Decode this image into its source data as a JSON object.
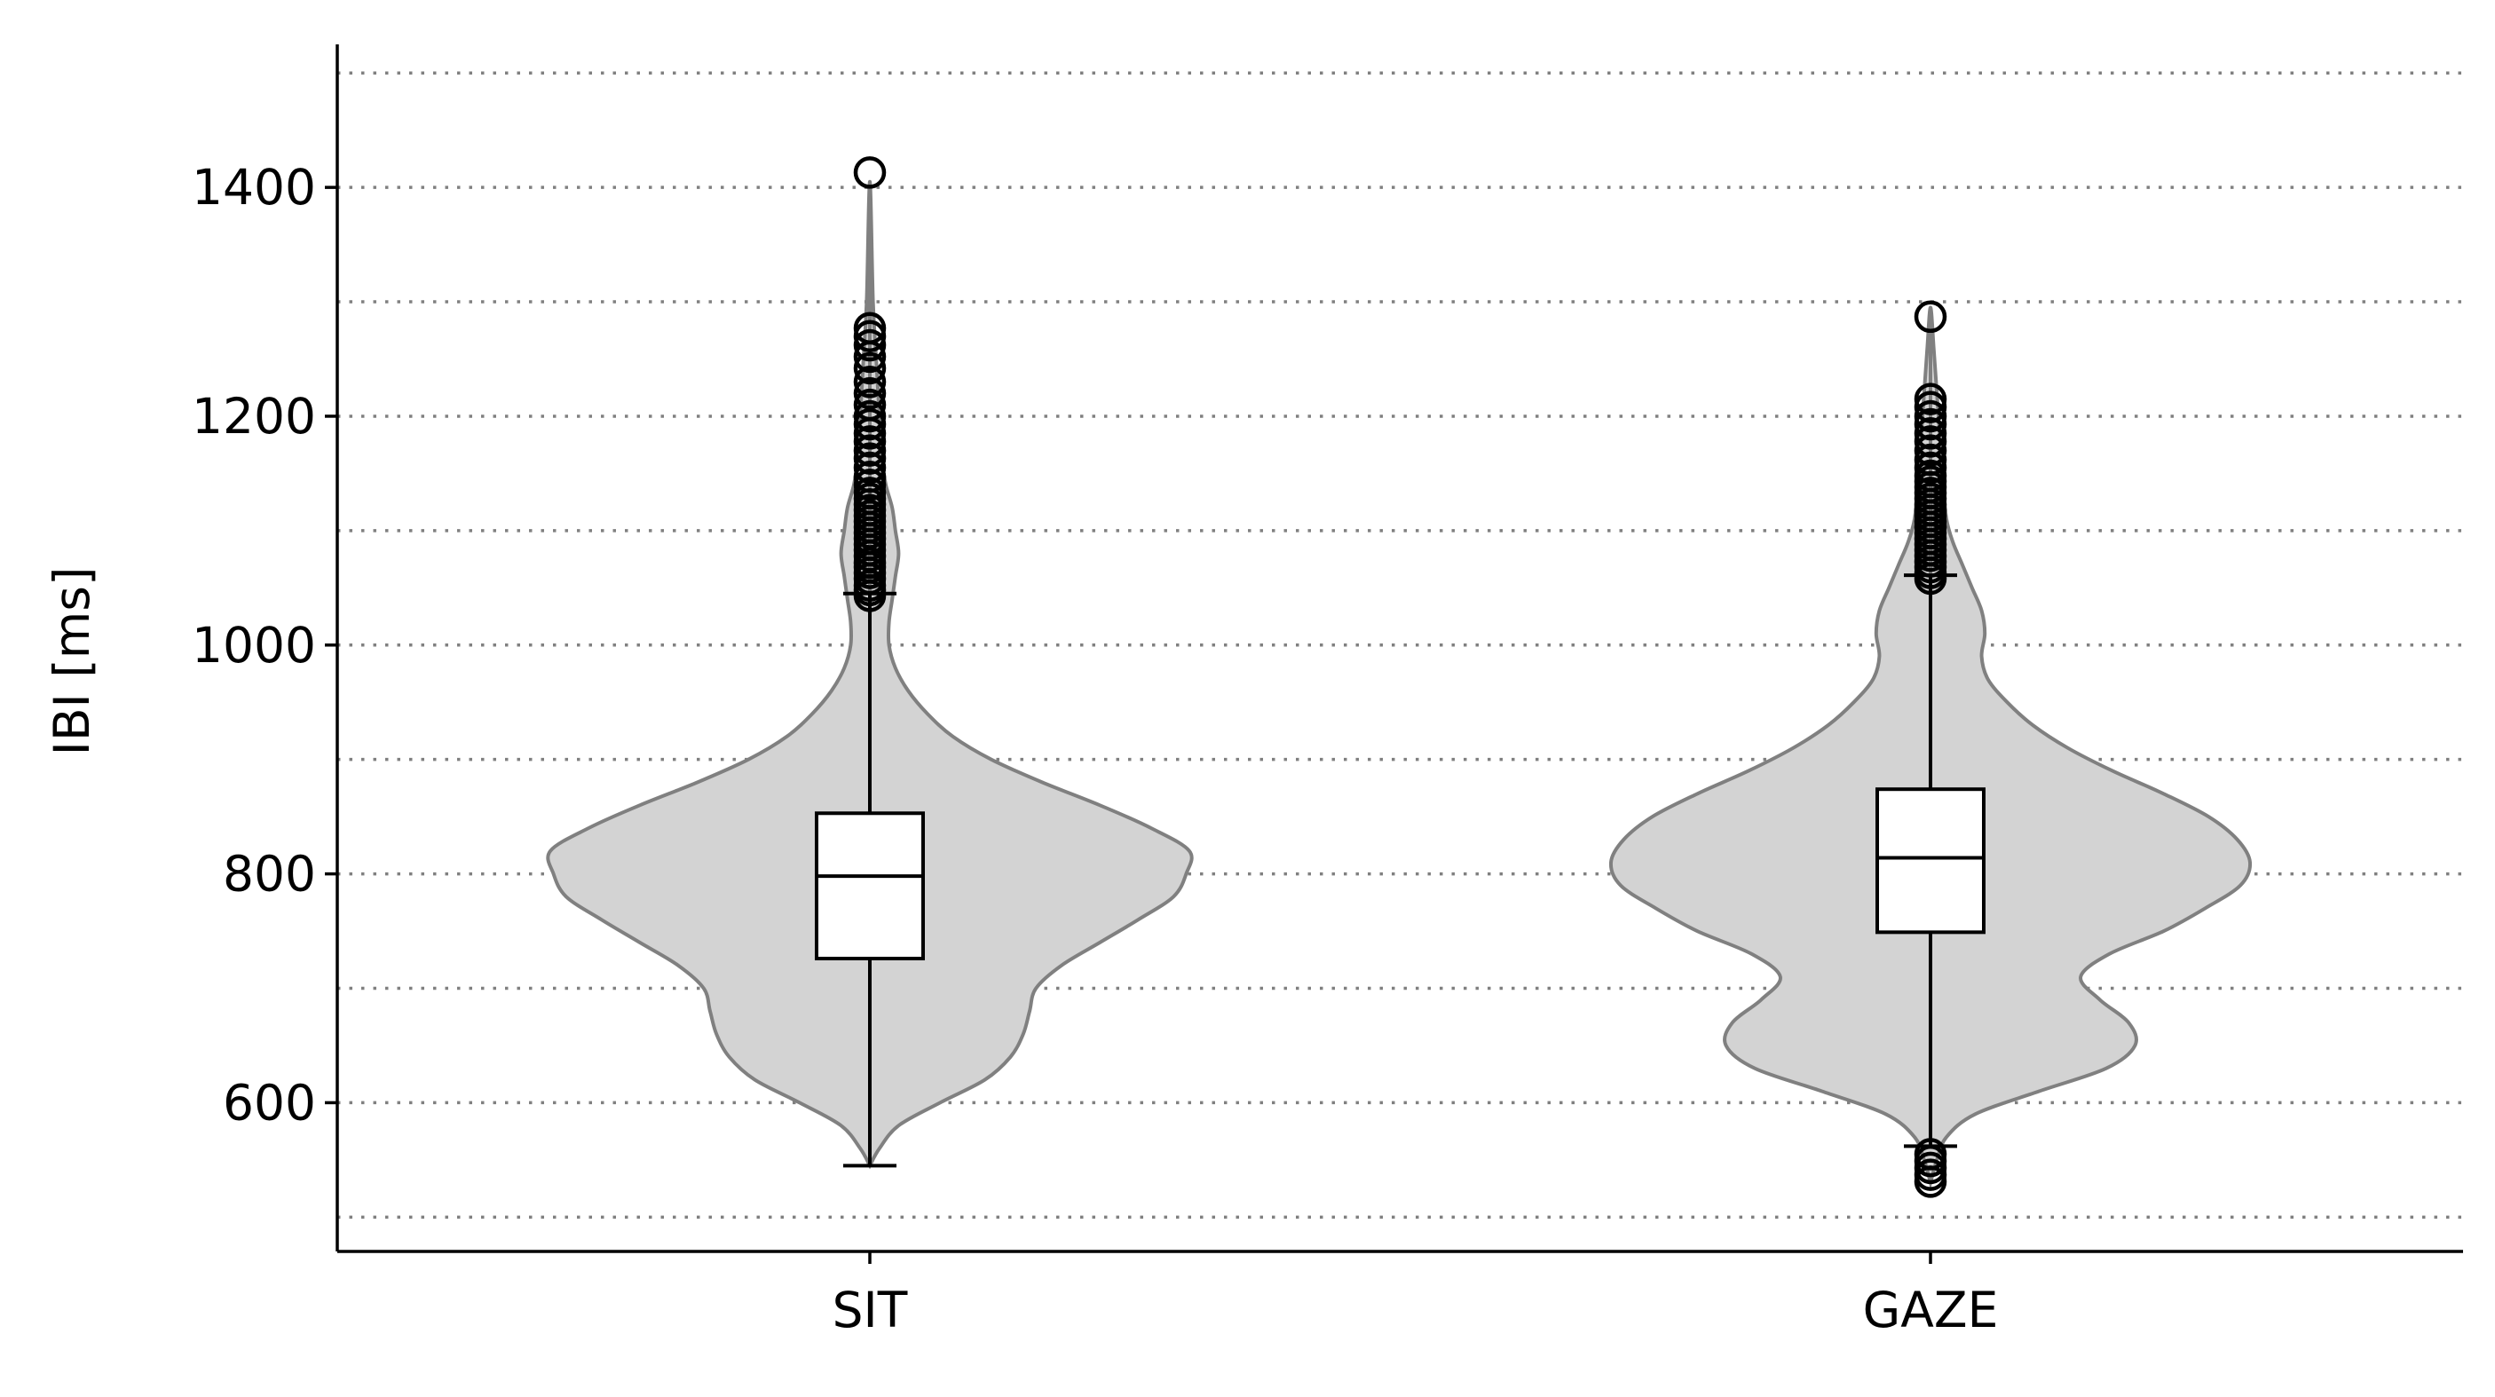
{
  "chart_data": {
    "type": "violin+box",
    "title": "",
    "xlabel": "",
    "ylabel": "IBI [ms]",
    "ylim": [
      470,
      1525
    ],
    "yticks": [
      600,
      800,
      1000,
      1200,
      1400
    ],
    "ygrid_lines": [
      500,
      600,
      700,
      800,
      900,
      1000,
      1100,
      1200,
      1300,
      1400,
      1500
    ],
    "grid": "horizontal dotted",
    "categories": [
      "SIT",
      "GAZE"
    ],
    "colors": {
      "violin_fill": "#d3d3d3",
      "violin_edge": "#808080",
      "box_fill": "#ffffff",
      "line": "#000000",
      "grid": "#808080"
    },
    "series": [
      {
        "category": "SIT",
        "box": {
          "whisker_low": 545,
          "q1": 726,
          "median": 798,
          "q3": 853,
          "whisker_high": 1045
        },
        "outliers": [
          1043,
          1048,
          1052,
          1058,
          1063,
          1068,
          1072,
          1078,
          1083,
          1088,
          1093,
          1098,
          1103,
          1108,
          1113,
          1118,
          1123,
          1128,
          1133,
          1140,
          1147,
          1155,
          1163,
          1170,
          1178,
          1185,
          1193,
          1200,
          1210,
          1220,
          1230,
          1242,
          1252,
          1262,
          1270,
          1277,
          1413
        ],
        "violin_range": [
          545,
          1405
        ],
        "density": [
          [
            545,
            0.0
          ],
          [
            560,
            0.03
          ],
          [
            580,
            0.09
          ],
          [
            600,
            0.22
          ],
          [
            620,
            0.36
          ],
          [
            640,
            0.44
          ],
          [
            660,
            0.48
          ],
          [
            680,
            0.5
          ],
          [
            700,
            0.52
          ],
          [
            720,
            0.6
          ],
          [
            740,
            0.72
          ],
          [
            760,
            0.84
          ],
          [
            780,
            0.95
          ],
          [
            800,
            0.99
          ],
          [
            820,
            1.0
          ],
          [
            840,
            0.88
          ],
          [
            860,
            0.72
          ],
          [
            880,
            0.54
          ],
          [
            900,
            0.38
          ],
          [
            920,
            0.26
          ],
          [
            940,
            0.18
          ],
          [
            960,
            0.12
          ],
          [
            980,
            0.08
          ],
          [
            1000,
            0.06
          ],
          [
            1020,
            0.06
          ],
          [
            1040,
            0.07
          ],
          [
            1060,
            0.08
          ],
          [
            1080,
            0.09
          ],
          [
            1100,
            0.08
          ],
          [
            1120,
            0.07
          ],
          [
            1140,
            0.05
          ],
          [
            1160,
            0.04
          ],
          [
            1200,
            0.03
          ],
          [
            1250,
            0.02
          ],
          [
            1300,
            0.01
          ],
          [
            1405,
            0.0
          ]
        ]
      },
      {
        "category": "GAZE",
        "box": {
          "whisker_low": 562,
          "q1": 749,
          "median": 814,
          "q3": 874,
          "whisker_high": 1061
        },
        "outliers": [
          531,
          537,
          543,
          549,
          555,
          1058,
          1063,
          1068,
          1073,
          1078,
          1083,
          1088,
          1093,
          1098,
          1103,
          1108,
          1113,
          1118,
          1123,
          1128,
          1133,
          1138,
          1143,
          1148,
          1155,
          1162,
          1170,
          1178,
          1185,
          1193,
          1200,
          1208,
          1215,
          1287
        ],
        "violin_range": [
          530,
          1295
        ],
        "density": [
          [
            530,
            0.0
          ],
          [
            550,
            0.02
          ],
          [
            570,
            0.05
          ],
          [
            590,
            0.14
          ],
          [
            610,
            0.34
          ],
          [
            630,
            0.55
          ],
          [
            650,
            0.64
          ],
          [
            670,
            0.62
          ],
          [
            690,
            0.53
          ],
          [
            710,
            0.47
          ],
          [
            730,
            0.56
          ],
          [
            750,
            0.73
          ],
          [
            770,
            0.86
          ],
          [
            790,
            0.97
          ],
          [
            810,
            1.0
          ],
          [
            830,
            0.96
          ],
          [
            850,
            0.87
          ],
          [
            870,
            0.73
          ],
          [
            890,
            0.57
          ],
          [
            910,
            0.43
          ],
          [
            930,
            0.32
          ],
          [
            950,
            0.24
          ],
          [
            970,
            0.18
          ],
          [
            990,
            0.16
          ],
          [
            1010,
            0.17
          ],
          [
            1030,
            0.16
          ],
          [
            1050,
            0.13
          ],
          [
            1070,
            0.1
          ],
          [
            1090,
            0.07
          ],
          [
            1110,
            0.05
          ],
          [
            1140,
            0.04
          ],
          [
            1180,
            0.03
          ],
          [
            1220,
            0.02
          ],
          [
            1260,
            0.01
          ],
          [
            1295,
            0.0
          ]
        ]
      }
    ]
  }
}
